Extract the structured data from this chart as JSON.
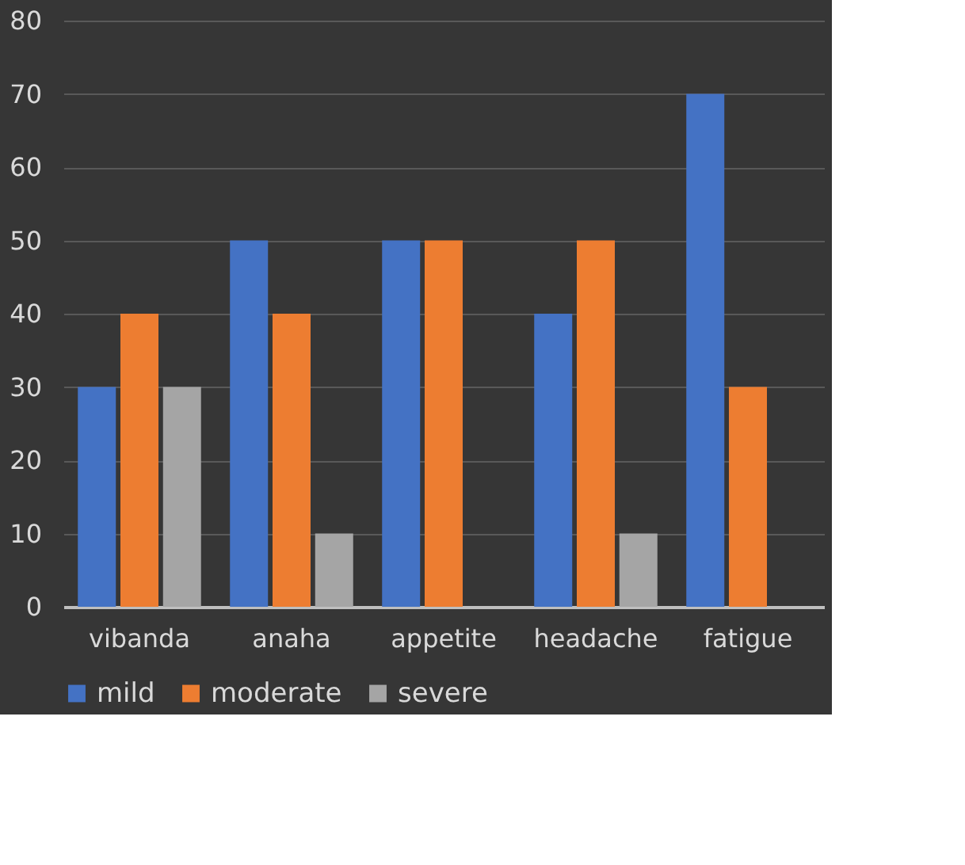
{
  "chart_data": {
    "type": "bar",
    "categories": [
      "vibanda",
      "anaha",
      "appetite",
      "headache",
      "fatigue"
    ],
    "series": [
      {
        "name": "mild",
        "color": "#4472c4",
        "values": [
          30,
          50,
          50,
          40,
          70
        ]
      },
      {
        "name": "moderate",
        "color": "#ed7d31",
        "values": [
          40,
          40,
          50,
          50,
          30
        ]
      },
      {
        "name": "severe",
        "color": "#a5a5a5",
        "values": [
          30,
          10,
          null,
          10,
          null
        ]
      }
    ],
    "ylim": [
      0,
      80
    ],
    "yticks": [
      0,
      10,
      20,
      30,
      40,
      50,
      60,
      70,
      80
    ],
    "grid": "y",
    "legend": "bottom"
  }
}
